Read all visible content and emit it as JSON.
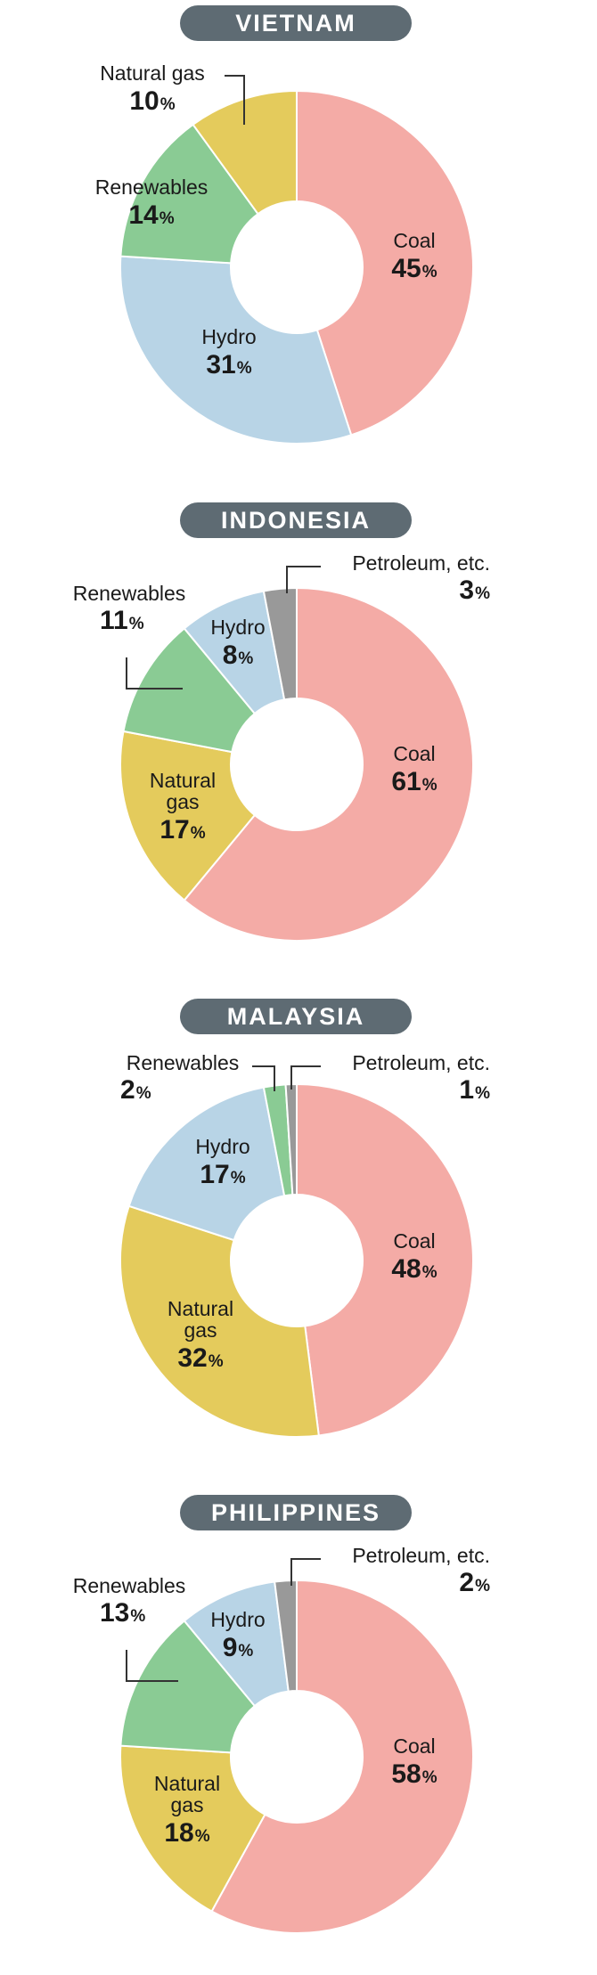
{
  "colors": {
    "Coal": "#f4aba6",
    "Hydro": "#b8d4e6",
    "Renewables": "#8acb94",
    "Natural gas": "#e4cb5c",
    "Petroleum, etc.": "#999999"
  },
  "unit": "%",
  "chart_data": [
    {
      "type": "pie",
      "title": "VIETNAM",
      "slices": [
        {
          "key": "Coal",
          "label": "Coal",
          "value": 45
        },
        {
          "key": "Hydro",
          "label": "Hydro",
          "value": 31
        },
        {
          "key": "Renewables",
          "label": "Renewables",
          "value": 14
        },
        {
          "key": "Natural gas",
          "label": "Natural gas",
          "value": 10
        }
      ]
    },
    {
      "type": "pie",
      "title": "INDONESIA",
      "slices": [
        {
          "key": "Coal",
          "label": "Coal",
          "value": 61
        },
        {
          "key": "Natural gas",
          "label": "Natural gas",
          "value": 17
        },
        {
          "key": "Renewables",
          "label": "Renewables",
          "value": 11
        },
        {
          "key": "Hydro",
          "label": "Hydro",
          "value": 8
        },
        {
          "key": "Petroleum, etc.",
          "label": "Petroleum, etc.",
          "value": 3
        }
      ]
    },
    {
      "type": "pie",
      "title": "MALAYSIA",
      "slices": [
        {
          "key": "Coal",
          "label": "Coal",
          "value": 48
        },
        {
          "key": "Natural gas",
          "label": "Natural gas",
          "value": 32
        },
        {
          "key": "Hydro",
          "label": "Hydro",
          "value": 17
        },
        {
          "key": "Renewables",
          "label": "Renewables",
          "value": 2
        },
        {
          "key": "Petroleum, etc.",
          "label": "Petroleum, etc.",
          "value": 1
        }
      ]
    },
    {
      "type": "pie",
      "title": "PHILIPPINES",
      "slices": [
        {
          "key": "Coal",
          "label": "Coal",
          "value": 58
        },
        {
          "key": "Natural gas",
          "label": "Natural gas",
          "value": 18
        },
        {
          "key": "Renewables",
          "label": "Renewables",
          "value": 13
        },
        {
          "key": "Hydro",
          "label": "Hydro",
          "value": 9
        },
        {
          "key": "Petroleum, etc.",
          "label": "Petroleum, etc.",
          "value": 2
        }
      ]
    }
  ]
}
